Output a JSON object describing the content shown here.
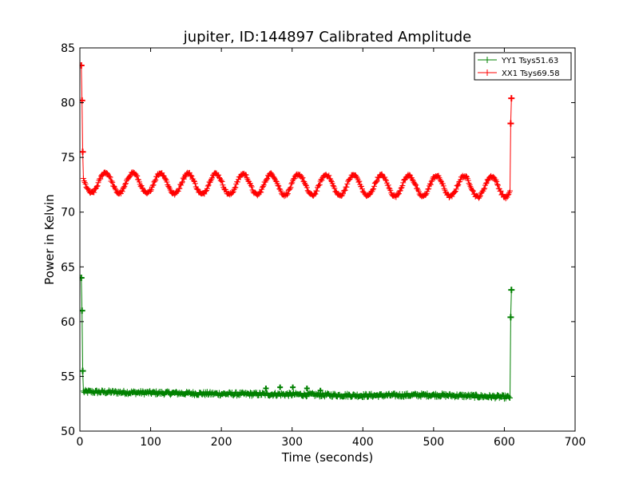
{
  "chart_data": {
    "type": "line",
    "title": "jupiter, ID:144897 Calibrated Amplitude",
    "xlabel": "Time (seconds)",
    "ylabel": "Power in Kelvin",
    "xlim": [
      0,
      700
    ],
    "ylim": [
      50,
      85
    ],
    "xticks": [
      0,
      100,
      200,
      300,
      400,
      500,
      600,
      700
    ],
    "yticks": [
      50,
      55,
      60,
      65,
      70,
      75,
      80,
      85
    ],
    "grid": false,
    "legend_position": "upper right",
    "marker": "+",
    "series": [
      {
        "name": "YY1 Tsys51.63",
        "color": "#008000",
        "spikes": [
          {
            "x": 2,
            "y": 64.0
          },
          {
            "x": 3,
            "y": 61.0
          },
          {
            "x": 4,
            "y": 55.5
          },
          {
            "x": 609,
            "y": 60.4
          },
          {
            "x": 610,
            "y": 62.9
          }
        ],
        "trend_points": [
          [
            5,
            53.6
          ],
          [
            100,
            53.5
          ],
          [
            200,
            53.4
          ],
          [
            300,
            53.35
          ],
          [
            400,
            53.25
          ],
          [
            500,
            53.3
          ],
          [
            608,
            53.1
          ]
        ],
        "outliers": [
          [
            263,
            53.9
          ],
          [
            283,
            54.0
          ],
          [
            301,
            54.0
          ],
          [
            321,
            53.9
          ],
          [
            340,
            53.7
          ]
        ]
      },
      {
        "name": "XX1 Tsys69.58",
        "color": "#ff0000",
        "spikes": [
          {
            "x": 2,
            "y": 83.4
          },
          {
            "x": 3,
            "y": 80.2
          },
          {
            "x": 4,
            "y": 75.5
          },
          {
            "x": 609,
            "y": 78.1
          },
          {
            "x": 610,
            "y": 80.4
          }
        ],
        "oscillation": {
          "x_start": 5,
          "x_end": 608,
          "baseline_start": 72.7,
          "baseline_end": 72.3,
          "amplitude": 0.95,
          "period": 39,
          "peak_at": 36
        }
      }
    ]
  }
}
